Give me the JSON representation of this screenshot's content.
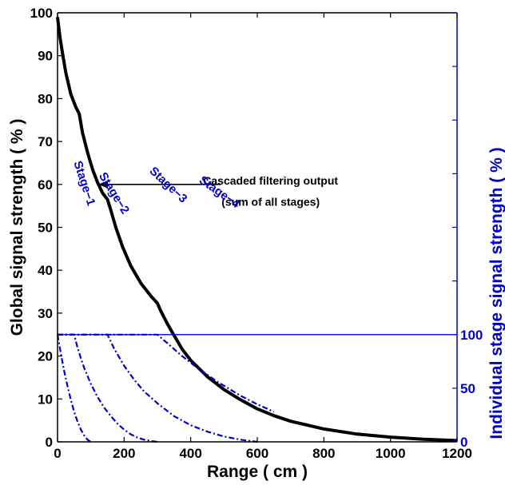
{
  "chart_data": {
    "type": "line",
    "x_axis": {
      "label": "Range ( cm )",
      "lim": [
        0,
        1200
      ],
      "ticks": [
        0,
        200,
        400,
        600,
        800,
        1000,
        1200
      ],
      "tick_labels": [
        "0",
        "200",
        "400",
        "600",
        "800",
        "1000",
        "1200"
      ]
    },
    "y_axis_left": {
      "label": "Global signal strength ( % )",
      "lim": [
        0,
        100
      ],
      "ticks": [
        0,
        10,
        20,
        30,
        40,
        50,
        60,
        70,
        80,
        90,
        100
      ],
      "tick_labels": [
        "0",
        "10",
        "20",
        "30",
        "40",
        "50",
        "60",
        "70",
        "80",
        "90",
        "100"
      ],
      "color": "#000000"
    },
    "y_axis_right": {
      "label": "Individual stage signal strength ( % )",
      "lim": [
        0,
        400
      ],
      "ticks": [
        0,
        50,
        100,
        150,
        200,
        250,
        300,
        350,
        400
      ],
      "tick_labels": [
        "0",
        "50",
        "100",
        "",
        "",
        "",
        "",
        "",
        ""
      ],
      "color": "#0000cc"
    },
    "grid": false,
    "series": [
      {
        "style": "solid",
        "color": "#000000",
        "axis": "left",
        "x": [
          0,
          3,
          8,
          15,
          25,
          40,
          55,
          65,
          75,
          90,
          105,
          120,
          135,
          150,
          160,
          175,
          195,
          220,
          250,
          280,
          300,
          310,
          330,
          350,
          375,
          400,
          450,
          500,
          550,
          600,
          650,
          700,
          800,
          900,
          1000,
          1100,
          1200
        ],
        "y": [
          99,
          97,
          94,
          90.5,
          86,
          81,
          78,
          76.5,
          72,
          67.5,
          63.5,
          60.5,
          58,
          56.5,
          54,
          50,
          45.5,
          41,
          37,
          34,
          32.3,
          30.5,
          27.5,
          24.8,
          21.5,
          19,
          15.2,
          12.2,
          9.8,
          7.7,
          6.1,
          4.8,
          3,
          1.8,
          1.1,
          0.6,
          0.3
        ]
      },
      {
        "name": "Stage-1",
        "style": "dashdot",
        "color": "#0000cc",
        "axis": "right",
        "x": [
          0,
          10,
          20,
          30,
          40,
          50,
          60,
          70,
          80,
          90,
          100
        ],
        "y": [
          100,
          82,
          66,
          52,
          39,
          28,
          19,
          11.5,
          6,
          2,
          0
        ]
      },
      {
        "name": "Stage-2",
        "style": "dashdot",
        "color": "#0000cc",
        "axis": "right",
        "x": [
          0,
          50,
          60,
          70,
          80,
          100,
          120,
          140,
          160,
          180,
          200,
          220,
          240,
          260,
          280,
          300
        ],
        "y": [
          100,
          100,
          88,
          78,
          69,
          54,
          42,
          32,
          24,
          17,
          11.5,
          7,
          4,
          2,
          0.8,
          0
        ]
      },
      {
        "name": "Stage-3",
        "style": "dashdot",
        "color": "#0000cc",
        "axis": "right",
        "x": [
          0,
          150,
          170,
          200,
          230,
          260,
          300,
          350,
          400,
          450,
          500,
          550,
          600
        ],
        "y": [
          100,
          100,
          87,
          71,
          58,
          47,
          36,
          24,
          15.5,
          9.5,
          5,
          2,
          0
        ]
      },
      {
        "name": "Stage-4",
        "style": "dashdot",
        "color": "#0000cc",
        "axis": "right",
        "x": [
          0,
          300,
          330,
          370,
          420,
          480,
          550,
          600,
          650
        ],
        "y": [
          100,
          100,
          92,
          81,
          69,
          56,
          43,
          35,
          28
        ]
      },
      {
        "style": "solid-thin",
        "color": "#0000cc",
        "axis": "right",
        "x": [
          0,
          1200
        ],
        "y": [
          100,
          100
        ]
      }
    ],
    "annotations": [
      {
        "text": "Cascaded filtering output",
        "x": 640,
        "y": 60
      },
      {
        "text": "(sum of all stages)",
        "x": 640,
        "y": 55
      }
    ],
    "arrow": {
      "from": [
        490,
        60
      ],
      "to": [
        125,
        60
      ]
    },
    "stage_labels": [
      {
        "text": "Stage−1",
        "x": 70,
        "y": 240,
        "angle": 72
      },
      {
        "text": "Stage−2",
        "x": 160,
        "y": 230,
        "angle": 58
      },
      {
        "text": "Stage−3",
        "x": 325,
        "y": 237,
        "angle": 43
      },
      {
        "text": "Stage−4",
        "x": 480,
        "y": 230,
        "angle": 35
      }
    ]
  }
}
